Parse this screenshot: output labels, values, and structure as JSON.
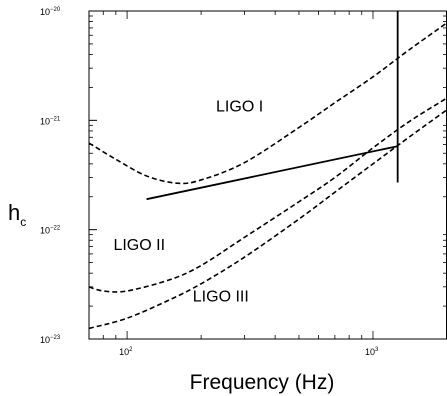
{
  "chart_data": {
    "type": "line",
    "title": "",
    "xlabel": "Frequency (Hz)",
    "ylabel": "h",
    "ylabel_subscript": "c",
    "xscale": "log",
    "yscale": "log",
    "xlim": [
      70,
      2000
    ],
    "ylim": [
      1e-23,
      1e-20
    ],
    "x_ticks": [
      {
        "value": 100,
        "label": "10",
        "exp": "2"
      },
      {
        "value": 1000,
        "label": "10",
        "exp": "3"
      }
    ],
    "y_ticks": [
      {
        "value": 1e-20,
        "label": "10",
        "exp": "−20"
      },
      {
        "value": 1e-21,
        "label": "10",
        "exp": "−21"
      },
      {
        "value": 1e-22,
        "label": "10",
        "exp": "−22"
      },
      {
        "value": 1e-23,
        "label": "10",
        "exp": "−23"
      }
    ],
    "grid": false,
    "series": [
      {
        "name": "LIGO I",
        "style": "dashed",
        "label_at": [
          230,
          1.2e-21
        ],
        "x": [
          70,
          90,
          120,
          160,
          200,
          300,
          500,
          700,
          1000,
          1400,
          2000
        ],
        "y": [
          6.2e-22,
          4.4e-22,
          3.1e-22,
          2.66e-22,
          2.85e-22,
          4.1e-22,
          8.6e-22,
          1.45e-21,
          2.5e-21,
          4.4e-21,
          7.8e-21
        ]
      },
      {
        "name": "LIGO II",
        "style": "dashed",
        "label_at": [
          88,
          6.5e-23
        ],
        "x": [
          70,
          80,
          100,
          150,
          200,
          300,
          500,
          700,
          1000,
          1400,
          2000
        ],
        "y": [
          3e-23,
          2.75e-23,
          2.75e-23,
          3.5e-23,
          4.7e-23,
          8.5e-23,
          1.8e-22,
          3e-22,
          5.6e-22,
          9.7e-22,
          1.6e-21
        ]
      },
      {
        "name": "LIGO III",
        "style": "dashed",
        "label_at": [
          185,
          2.2e-23
        ],
        "x": [
          70,
          100,
          150,
          200,
          300,
          500,
          700,
          1000,
          1400,
          2000
        ],
        "y": [
          1.25e-23,
          1.55e-23,
          2.3e-23,
          3.2e-23,
          5.6e-23,
          1.25e-22,
          2.2e-22,
          4e-22,
          7e-22,
          1.25e-21
        ]
      },
      {
        "name": "",
        "style": "solid",
        "x": [
          120,
          1260
        ],
        "y": [
          1.9e-22,
          5.8e-22
        ]
      },
      {
        "name": "",
        "style": "solid",
        "x": [
          1260,
          1260
        ],
        "y": [
          1e-20,
          2.7e-22
        ]
      }
    ]
  }
}
